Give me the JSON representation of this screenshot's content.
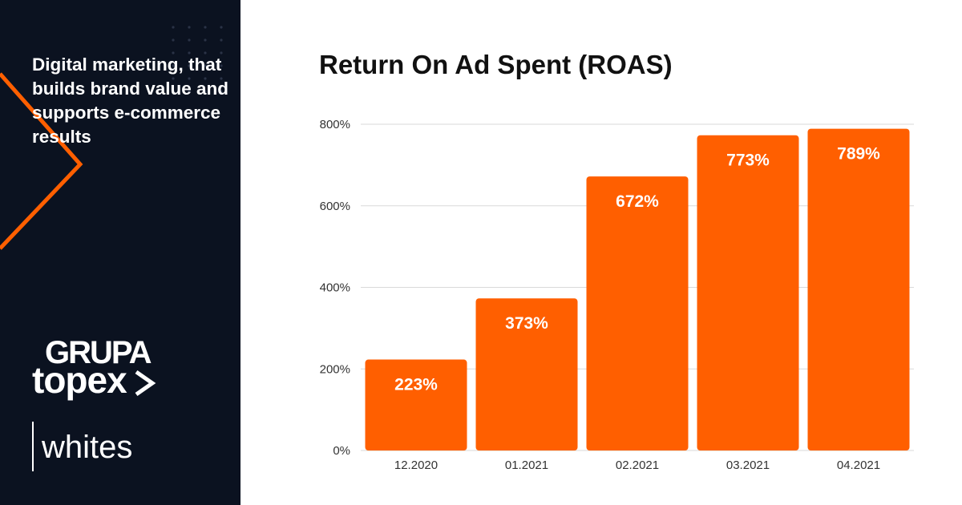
{
  "sidebar": {
    "tagline": "Digital marketing, that builds brand value and supports e-commerce results",
    "logo_line1": "GRUPA",
    "logo_line2": "topex",
    "brand2": "whites",
    "colors": {
      "background": "#0b1220",
      "accent": "#ff5f00",
      "dots": "#2a3346"
    }
  },
  "chart_data": {
    "type": "bar",
    "title": "Return On Ad Spent (ROAS)",
    "categories": [
      "12.2020",
      "01.2021",
      "02.2021",
      "03.2021",
      "04.2021"
    ],
    "values": [
      223,
      373,
      672,
      773,
      789
    ],
    "data_labels": [
      "223%",
      "373%",
      "672%",
      "773%",
      "789%"
    ],
    "y_ticks": [
      0,
      200,
      400,
      600,
      800
    ],
    "y_tick_labels": [
      "0%",
      "200%",
      "400%",
      "600%",
      "800%"
    ],
    "ylim": [
      0,
      800
    ],
    "xlabel": "",
    "ylabel": "",
    "grid": true,
    "bar_color": "#ff5f00"
  }
}
